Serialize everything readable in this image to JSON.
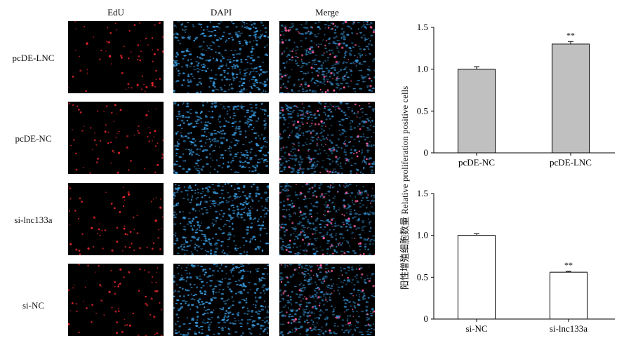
{
  "columns": [
    "EdU",
    "DAPI",
    "Merge"
  ],
  "rows": [
    "pcDE-LNC",
    "pcDE-NC",
    "si-lnc133a",
    "si-NC"
  ],
  "y_axis_label": "阳性增殖细胞数量 Relative proliferation positive cells",
  "colors": {
    "edu": "#e3252b",
    "dapi": "#3aa0e8",
    "bar_top": "#c0c0c0",
    "bar_bottom": "#ffffff",
    "axis": "#000000"
  },
  "chart_data": [
    {
      "type": "bar",
      "categories": [
        "pcDE-NC",
        "pcDE-LNC"
      ],
      "values": [
        1.0,
        1.3
      ],
      "errors": [
        0.03,
        0.03
      ],
      "annotations": [
        "",
        "**"
      ],
      "ylim": [
        0,
        1.5
      ],
      "yticks": [
        "0",
        "0.5",
        "1.0",
        "1.5"
      ],
      "ytick_values": [
        0,
        0.5,
        1.0,
        1.5
      ],
      "bar_color": "#c0c0c0"
    },
    {
      "type": "bar",
      "categories": [
        "si-NC",
        "si-lnc133a"
      ],
      "values": [
        1.0,
        0.56
      ],
      "errors": [
        0.02,
        0.01
      ],
      "annotations": [
        "",
        "**"
      ],
      "ylim": [
        0,
        1.5
      ],
      "yticks": [
        "0",
        "0.5",
        "1.0",
        "1.5"
      ],
      "ytick_values": [
        0,
        0.5,
        1.0,
        1.5
      ],
      "bar_color": "#ffffff"
    }
  ]
}
